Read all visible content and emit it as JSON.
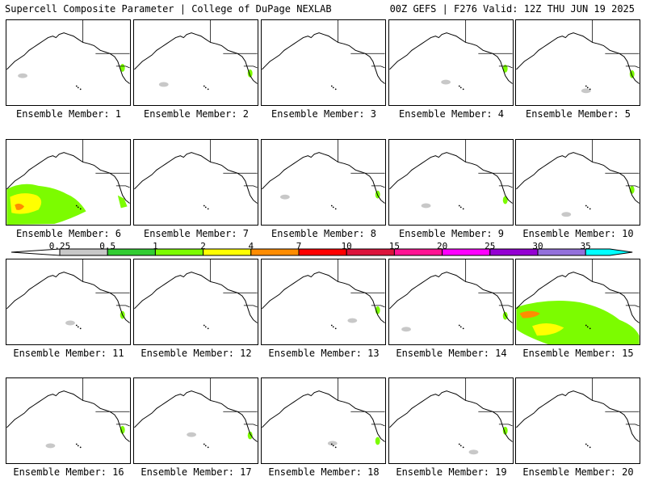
{
  "header": {
    "left": "Supercell Composite Parameter | College of DuPage NEXLAB",
    "right": "00Z GEFS | F276 Valid: 12Z THU JUN 19 2025"
  },
  "colorbar": {
    "ticks": [
      "0.25",
      "0.5",
      "1",
      "2",
      "4",
      "7",
      "10",
      "15",
      "20",
      "25",
      "30",
      "35"
    ],
    "colors": [
      "#c8c8c8",
      "#32cd32",
      "#7cfc00",
      "#ffff00",
      "#ff8c00",
      "#ff0000",
      "#dc143c",
      "#ff1493",
      "#ff00ff",
      "#9400d3",
      "#9370db",
      "#00ffff"
    ]
  },
  "panels": [
    {
      "label": "Ensemble Member: 1",
      "blobs": "light"
    },
    {
      "label": "Ensemble Member: 2",
      "blobs": "light"
    },
    {
      "label": "Ensemble Member: 3",
      "blobs": "none"
    },
    {
      "label": "Ensemble Member: 4",
      "blobs": "light"
    },
    {
      "label": "Ensemble Member: 5",
      "blobs": "light"
    },
    {
      "label": "Ensemble Member: 6",
      "blobs": "heavy"
    },
    {
      "label": "Ensemble Member: 7",
      "blobs": "none"
    },
    {
      "label": "Ensemble Member: 8",
      "blobs": "light"
    },
    {
      "label": "Ensemble Member: 9",
      "blobs": "light"
    },
    {
      "label": "Ensemble Member: 10",
      "blobs": "light"
    },
    {
      "label": "Ensemble Member: 11",
      "blobs": "light"
    },
    {
      "label": "Ensemble Member: 12",
      "blobs": "none"
    },
    {
      "label": "Ensemble Member: 13",
      "blobs": "light"
    },
    {
      "label": "Ensemble Member: 14",
      "blobs": "light"
    },
    {
      "label": "Ensemble Member: 15",
      "blobs": "heavy"
    },
    {
      "label": "Ensemble Member: 16",
      "blobs": "light"
    },
    {
      "label": "Ensemble Member: 17",
      "blobs": "light"
    },
    {
      "label": "Ensemble Member: 18",
      "blobs": "light"
    },
    {
      "label": "Ensemble Member: 19",
      "blobs": "light"
    },
    {
      "label": "Ensemble Member: 20",
      "blobs": "none"
    }
  ]
}
